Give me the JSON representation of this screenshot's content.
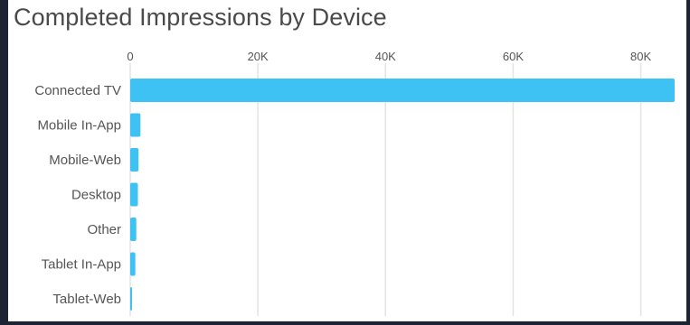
{
  "chart_data": {
    "type": "bar",
    "orientation": "horizontal",
    "title": "Completed Impressions by Device",
    "xlabel": "",
    "ylabel": "",
    "categories": [
      "Connected TV",
      "Mobile In-App",
      "Mobile-Web",
      "Desktop",
      "Other",
      "Tablet In-App",
      "Tablet-Web"
    ],
    "values": [
      85300,
      1600,
      1300,
      1200,
      950,
      800,
      250
    ],
    "xlim": [
      0,
      85300
    ],
    "xticks": [
      0,
      20000,
      40000,
      60000,
      80000
    ],
    "xtick_labels": [
      "0",
      "20K",
      "40K",
      "60K",
      "80K"
    ],
    "axis_position": "top",
    "grid": true,
    "legend": "none",
    "colors": {
      "bar": "#3ec1f3",
      "grid": "#e3e3e3",
      "text": "#555555",
      "title": "#4a4a4a",
      "background": "#ffffff",
      "frame": "#1c2333"
    }
  }
}
